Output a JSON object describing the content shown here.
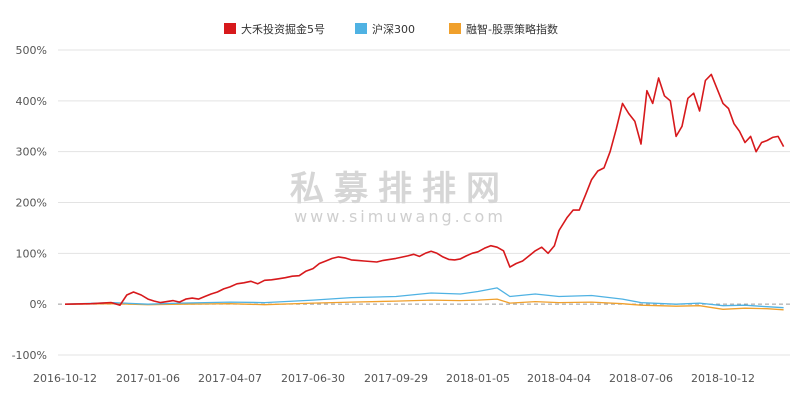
{
  "chart_data": {
    "type": "line",
    "title": "",
    "xlabel": "",
    "ylabel": "",
    "ylim": [
      -100,
      500
    ],
    "y_ticks": [
      "500%",
      "400%",
      "300%",
      "200%",
      "100%",
      "0%",
      "-100%"
    ],
    "x_ticks": [
      "2016-10-12",
      "2017-01-06",
      "2017-04-07",
      "2017-06-30",
      "2017-09-29",
      "2018-01-05",
      "2018-04-04",
      "2018-07-06",
      "2018-10-12"
    ],
    "x_range": [
      "2016-10-12",
      "2018-12-31"
    ],
    "grid": "horizontal",
    "legend_position": "top-center",
    "watermark": {
      "text_cn": "私募排排网",
      "text_en": "www.simuwang.com"
    },
    "series": [
      {
        "name": "大禾投资掘金5号",
        "color": "#d7191c",
        "points": [
          [
            "2016-10-12",
            0
          ],
          [
            "2016-11-08",
            1
          ],
          [
            "2016-11-29",
            3
          ],
          [
            "2016-12-08",
            -2
          ],
          [
            "2016-12-15",
            18
          ],
          [
            "2016-12-22",
            24
          ],
          [
            "2016-12-30",
            18
          ],
          [
            "2017-01-06",
            10
          ],
          [
            "2017-01-13",
            6
          ],
          [
            "2017-01-20",
            3
          ],
          [
            "2017-01-27",
            5
          ],
          [
            "2017-02-03",
            7
          ],
          [
            "2017-02-10",
            4
          ],
          [
            "2017-02-17",
            10
          ],
          [
            "2017-02-24",
            12
          ],
          [
            "2017-03-03",
            10
          ],
          [
            "2017-03-10",
            15
          ],
          [
            "2017-03-17",
            20
          ],
          [
            "2017-03-24",
            24
          ],
          [
            "2017-03-31",
            30
          ],
          [
            "2017-04-07",
            34
          ],
          [
            "2017-04-14",
            40
          ],
          [
            "2017-04-21",
            42
          ],
          [
            "2017-04-28",
            45
          ],
          [
            "2017-05-05",
            40
          ],
          [
            "2017-05-12",
            47
          ],
          [
            "2017-05-19",
            48
          ],
          [
            "2017-05-26",
            50
          ],
          [
            "2017-06-02",
            52
          ],
          [
            "2017-06-09",
            55
          ],
          [
            "2017-06-16",
            56
          ],
          [
            "2017-06-23",
            65
          ],
          [
            "2017-06-30",
            70
          ],
          [
            "2017-07-07",
            80
          ],
          [
            "2017-07-14",
            85
          ],
          [
            "2017-07-21",
            90
          ],
          [
            "2017-07-28",
            93
          ],
          [
            "2017-08-04",
            91
          ],
          [
            "2017-08-11",
            87
          ],
          [
            "2017-08-18",
            86
          ],
          [
            "2017-08-25",
            85
          ],
          [
            "2017-09-01",
            84
          ],
          [
            "2017-09-08",
            83
          ],
          [
            "2017-09-15",
            86
          ],
          [
            "2017-09-22",
            88
          ],
          [
            "2017-09-29",
            90
          ],
          [
            "2017-10-13",
            95
          ],
          [
            "2017-10-20",
            98
          ],
          [
            "2017-10-27",
            94
          ],
          [
            "2017-11-03",
            100
          ],
          [
            "2017-11-10",
            104
          ],
          [
            "2017-11-17",
            100
          ],
          [
            "2017-11-24",
            93
          ],
          [
            "2017-12-01",
            88
          ],
          [
            "2017-12-08",
            87
          ],
          [
            "2017-12-15",
            89
          ],
          [
            "2017-12-22",
            95
          ],
          [
            "2017-12-29",
            100
          ],
          [
            "2018-01-05",
            103
          ],
          [
            "2018-01-12",
            110
          ],
          [
            "2018-01-19",
            115
          ],
          [
            "2018-01-26",
            112
          ],
          [
            "2018-02-02",
            105
          ],
          [
            "2018-02-09",
            73
          ],
          [
            "2018-02-16",
            80
          ],
          [
            "2018-02-23",
            85
          ],
          [
            "2018-03-02",
            95
          ],
          [
            "2018-03-09",
            105
          ],
          [
            "2018-03-16",
            112
          ],
          [
            "2018-03-23",
            100
          ],
          [
            "2018-03-30",
            115
          ],
          [
            "2018-04-04",
            145
          ],
          [
            "2018-04-13",
            170
          ],
          [
            "2018-04-20",
            185
          ],
          [
            "2018-04-27",
            185
          ],
          [
            "2018-05-04",
            215
          ],
          [
            "2018-05-11",
            245
          ],
          [
            "2018-05-18",
            262
          ],
          [
            "2018-05-25",
            268
          ],
          [
            "2018-06-01",
            300
          ],
          [
            "2018-06-08",
            345
          ],
          [
            "2018-06-15",
            395
          ],
          [
            "2018-06-22",
            375
          ],
          [
            "2018-06-29",
            360
          ],
          [
            "2018-07-06",
            315
          ],
          [
            "2018-07-13",
            420
          ],
          [
            "2018-07-20",
            395
          ],
          [
            "2018-07-27",
            445
          ],
          [
            "2018-08-03",
            410
          ],
          [
            "2018-08-10",
            400
          ],
          [
            "2018-08-17",
            330
          ],
          [
            "2018-08-24",
            350
          ],
          [
            "2018-08-31",
            405
          ],
          [
            "2018-09-07",
            415
          ],
          [
            "2018-09-14",
            380
          ],
          [
            "2018-09-21",
            440
          ],
          [
            "2018-09-28",
            452
          ],
          [
            "2018-10-12",
            395
          ],
          [
            "2018-10-19",
            385
          ],
          [
            "2018-10-26",
            355
          ],
          [
            "2018-11-02",
            340
          ],
          [
            "2018-11-09",
            318
          ],
          [
            "2018-11-16",
            330
          ],
          [
            "2018-11-23",
            300
          ],
          [
            "2018-11-30",
            318
          ],
          [
            "2018-12-07",
            322
          ],
          [
            "2018-12-14",
            328
          ],
          [
            "2018-12-21",
            330
          ],
          [
            "2018-12-28",
            310
          ]
        ]
      },
      {
        "name": "沪深300",
        "color": "#4fb2e3",
        "points": [
          [
            "2016-10-12",
            0
          ],
          [
            "2016-12-01",
            3
          ],
          [
            "2017-01-06",
            0
          ],
          [
            "2017-02-10",
            2
          ],
          [
            "2017-04-07",
            4
          ],
          [
            "2017-05-12",
            3
          ],
          [
            "2017-06-30",
            8
          ],
          [
            "2017-08-11",
            13
          ],
          [
            "2017-09-29",
            15
          ],
          [
            "2017-11-10",
            22
          ],
          [
            "2017-12-15",
            20
          ],
          [
            "2018-01-05",
            25
          ],
          [
            "2018-01-26",
            32
          ],
          [
            "2018-02-09",
            15
          ],
          [
            "2018-03-09",
            20
          ],
          [
            "2018-04-04",
            15
          ],
          [
            "2018-05-11",
            17
          ],
          [
            "2018-06-15",
            10
          ],
          [
            "2018-07-06",
            3
          ],
          [
            "2018-08-17",
            0
          ],
          [
            "2018-09-14",
            2
          ],
          [
            "2018-10-12",
            -3
          ],
          [
            "2018-11-09",
            -2
          ],
          [
            "2018-12-07",
            -5
          ],
          [
            "2018-12-28",
            -7
          ]
        ]
      },
      {
        "name": "融智-股票策略指数",
        "color": "#f0a02c",
        "points": [
          [
            "2016-10-12",
            0
          ],
          [
            "2016-12-01",
            1
          ],
          [
            "2017-01-06",
            -1
          ],
          [
            "2017-02-10",
            0
          ],
          [
            "2017-04-07",
            1
          ],
          [
            "2017-05-12",
            -1
          ],
          [
            "2017-06-30",
            2
          ],
          [
            "2017-08-11",
            4
          ],
          [
            "2017-09-29",
            6
          ],
          [
            "2017-11-10",
            8
          ],
          [
            "2017-12-15",
            7
          ],
          [
            "2018-01-05",
            8
          ],
          [
            "2018-01-26",
            10
          ],
          [
            "2018-02-09",
            2
          ],
          [
            "2018-03-09",
            5
          ],
          [
            "2018-04-04",
            3
          ],
          [
            "2018-05-11",
            4
          ],
          [
            "2018-06-15",
            1
          ],
          [
            "2018-07-06",
            -2
          ],
          [
            "2018-08-17",
            -4
          ],
          [
            "2018-09-14",
            -3
          ],
          [
            "2018-10-12",
            -10
          ],
          [
            "2018-11-09",
            -8
          ],
          [
            "2018-12-07",
            -9
          ],
          [
            "2018-12-28",
            -11
          ]
        ]
      }
    ]
  }
}
